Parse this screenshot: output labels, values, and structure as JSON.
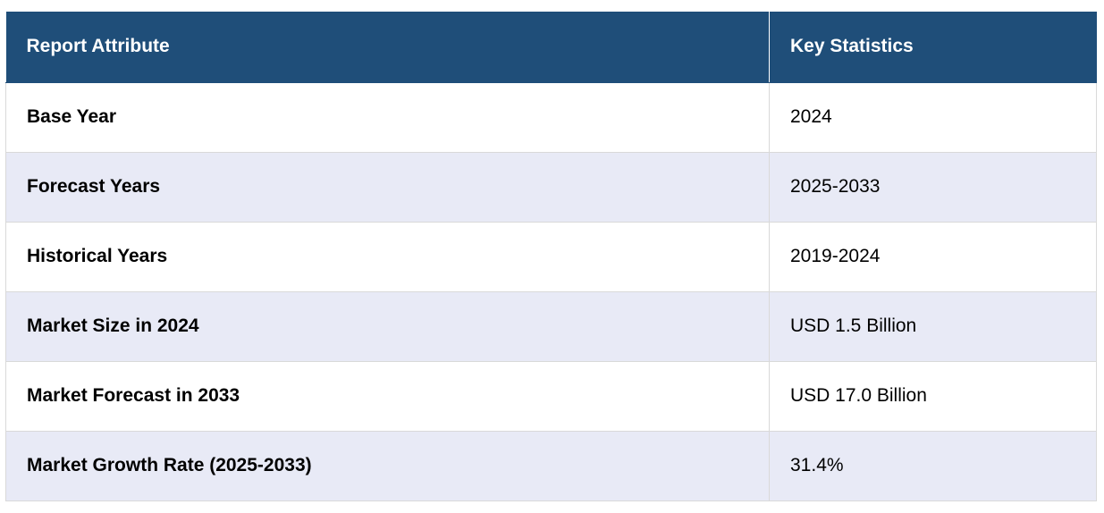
{
  "table": {
    "headers": {
      "attribute": "Report Attribute",
      "statistics": "Key Statistics"
    },
    "rows": [
      {
        "attribute": "Base Year",
        "value": "2024"
      },
      {
        "attribute": "Forecast Years",
        "value": "2025-2033"
      },
      {
        "attribute": "Historical Years",
        "value": "2019-2024"
      },
      {
        "attribute": "Market Size in 2024",
        "value": "USD 1.5 Billion"
      },
      {
        "attribute": "Market Forecast in 2033",
        "value": "USD 17.0 Billion"
      },
      {
        "attribute": "Market Growth Rate (2025-2033)",
        "value": "31.4%"
      }
    ]
  },
  "colors": {
    "header_bg": "#1f4e79",
    "header_text": "#ffffff",
    "row_alt_bg": "#e8eaf6",
    "row_bg": "#ffffff"
  }
}
